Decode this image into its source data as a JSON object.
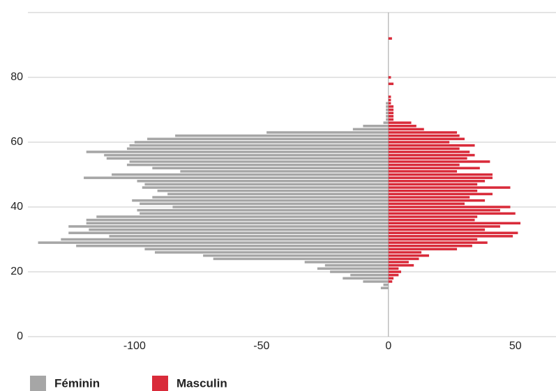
{
  "chart_data": {
    "type": "bar",
    "orientation": "horizontal",
    "y": [
      15,
      16,
      17,
      18,
      19,
      20,
      21,
      22,
      23,
      24,
      25,
      26,
      27,
      28,
      29,
      30,
      31,
      32,
      33,
      34,
      35,
      36,
      37,
      38,
      39,
      40,
      41,
      42,
      43,
      44,
      45,
      46,
      47,
      48,
      49,
      50,
      51,
      52,
      53,
      54,
      55,
      56,
      57,
      58,
      59,
      60,
      61,
      62,
      63,
      64,
      65,
      66,
      67,
      68,
      69,
      70,
      71,
      72,
      73,
      74,
      75,
      76,
      77,
      78,
      79,
      80,
      81,
      82,
      83,
      84,
      85,
      86,
      87,
      88,
      89,
      90,
      91,
      92
    ],
    "series": [
      {
        "name": "Féminin",
        "color": "#a6a6a6",
        "values": [
          -3,
          -2,
          -10,
          -18,
          -15,
          -23,
          -28,
          -25,
          -33,
          -69,
          -73,
          -92,
          -96,
          -123,
          -138,
          -129,
          -110,
          -126,
          -118,
          -126,
          -119,
          -119,
          -115,
          -98,
          -99,
          -85,
          -98,
          -101,
          -93,
          -87,
          -91,
          -97,
          -96,
          -99,
          -120,
          -109,
          -82,
          -93,
          -103,
          -102,
          -111,
          -112,
          -119,
          -103,
          -102,
          -100,
          -95,
          -84,
          -48,
          -14,
          -10,
          -2,
          -1,
          -1,
          -1,
          -1,
          -1,
          -1,
          null,
          null,
          null,
          null,
          null,
          null,
          null,
          null,
          null,
          null,
          null,
          null,
          null,
          null,
          null,
          null,
          null,
          null,
          null,
          null
        ]
      },
      {
        "name": "Masculin",
        "color": "#d92b3a",
        "values": [
          null,
          null,
          1.5,
          2,
          4,
          5,
          4,
          10,
          8,
          12,
          16,
          13,
          27,
          33,
          39,
          35,
          49,
          51,
          38,
          44,
          52,
          34,
          35,
          50,
          44,
          48,
          30,
          38,
          32,
          41,
          35,
          48,
          35,
          38,
          41,
          41,
          27,
          36,
          28,
          40,
          31,
          34,
          32,
          28,
          34,
          24,
          30,
          28,
          27,
          14,
          11,
          9,
          2,
          2,
          2,
          2,
          2,
          1,
          1,
          1,
          null,
          null,
          null,
          2,
          null,
          1,
          null,
          null,
          null,
          null,
          null,
          null,
          null,
          null,
          null,
          null,
          null,
          1.4
        ]
      }
    ],
    "xlim": [
      -142,
      66
    ],
    "xticks": [
      -100,
      -50,
      0,
      50
    ],
    "ylim": [
      0,
      100
    ],
    "yticks": [
      0,
      20,
      40,
      60,
      80
    ],
    "grid": true
  }
}
